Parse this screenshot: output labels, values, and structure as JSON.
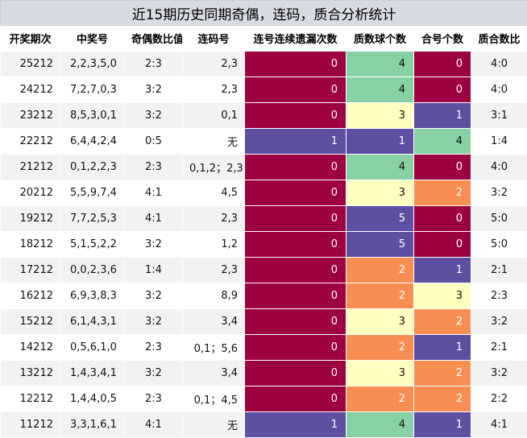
{
  "title": "近15期历史同期奇偶，连码，质合分析统计",
  "headers": [
    "开奖期次",
    "中奖号",
    "奇偶数比值",
    "连码号",
    "连号连续遗漏次数",
    "质数球个数",
    "合号个数",
    "质合数比"
  ],
  "colors": {
    "0": "#9e0142",
    "1": "#5e4fa2",
    "2": "#f98e52",
    "3": "#ffffbf",
    "4": "#88d1a4",
    "5": "#5e4fa2"
  },
  "rows": [
    {
      "issue": "25212",
      "numbers": "2,2,3,5,0",
      "oe": "2:3",
      "consec": "2,3",
      "miss": "0",
      "prime": "4",
      "composite": "0",
      "pc": "4:0"
    },
    {
      "issue": "24212",
      "numbers": "7,2,7,0,3",
      "oe": "3:2",
      "consec": "2,3",
      "miss": "0",
      "prime": "4",
      "composite": "0",
      "pc": "4:0"
    },
    {
      "issue": "23212",
      "numbers": "8,5,3,0,1",
      "oe": "3:2",
      "consec": "0,1",
      "miss": "0",
      "prime": "3",
      "composite": "1",
      "pc": "3:1"
    },
    {
      "issue": "22212",
      "numbers": "6,4,4,2,4",
      "oe": "0:5",
      "consec": "无",
      "miss": "1",
      "prime": "1",
      "composite": "4",
      "pc": "1:4"
    },
    {
      "issue": "21212",
      "numbers": "0,1,2,2,3",
      "oe": "2:3",
      "consec": "0,1,2；2,3",
      "miss": "0",
      "prime": "4",
      "composite": "0",
      "pc": "4:0"
    },
    {
      "issue": "20212",
      "numbers": "5,5,9,7,4",
      "oe": "4:1",
      "consec": "4,5",
      "miss": "0",
      "prime": "3",
      "composite": "2",
      "pc": "3:2"
    },
    {
      "issue": "19212",
      "numbers": "7,7,2,5,3",
      "oe": "4:1",
      "consec": "2,3",
      "miss": "0",
      "prime": "5",
      "composite": "0",
      "pc": "5:0"
    },
    {
      "issue": "18212",
      "numbers": "5,1,5,2,2",
      "oe": "3:2",
      "consec": "1,2",
      "miss": "0",
      "prime": "5",
      "composite": "0",
      "pc": "5:0"
    },
    {
      "issue": "17212",
      "numbers": "0,0,2,3,6",
      "oe": "1:4",
      "consec": "2,3",
      "miss": "0",
      "prime": "2",
      "composite": "1",
      "pc": "2:1"
    },
    {
      "issue": "16212",
      "numbers": "6,9,3,8,3",
      "oe": "3:2",
      "consec": "8,9",
      "miss": "0",
      "prime": "2",
      "composite": "3",
      "pc": "2:3"
    },
    {
      "issue": "15212",
      "numbers": "6,1,4,3,1",
      "oe": "3:2",
      "consec": "3,4",
      "miss": "0",
      "prime": "3",
      "composite": "2",
      "pc": "3:2"
    },
    {
      "issue": "14212",
      "numbers": "0,5,6,1,0",
      "oe": "2:3",
      "consec": "0,1；5,6",
      "miss": "0",
      "prime": "2",
      "composite": "1",
      "pc": "2:1"
    },
    {
      "issue": "13212",
      "numbers": "1,4,3,4,1",
      "oe": "3:2",
      "consec": "3,4",
      "miss": "0",
      "prime": "3",
      "composite": "2",
      "pc": "3:2"
    },
    {
      "issue": "12212",
      "numbers": "1,4,4,0,5",
      "oe": "2:3",
      "consec": "0,1；4,5",
      "miss": "0",
      "prime": "2",
      "composite": "2",
      "pc": "2:2"
    },
    {
      "issue": "11212",
      "numbers": "3,3,1,6,1",
      "oe": "4:1",
      "consec": "无",
      "miss": "1",
      "prime": "4",
      "composite": "1",
      "pc": "4:1"
    }
  ]
}
